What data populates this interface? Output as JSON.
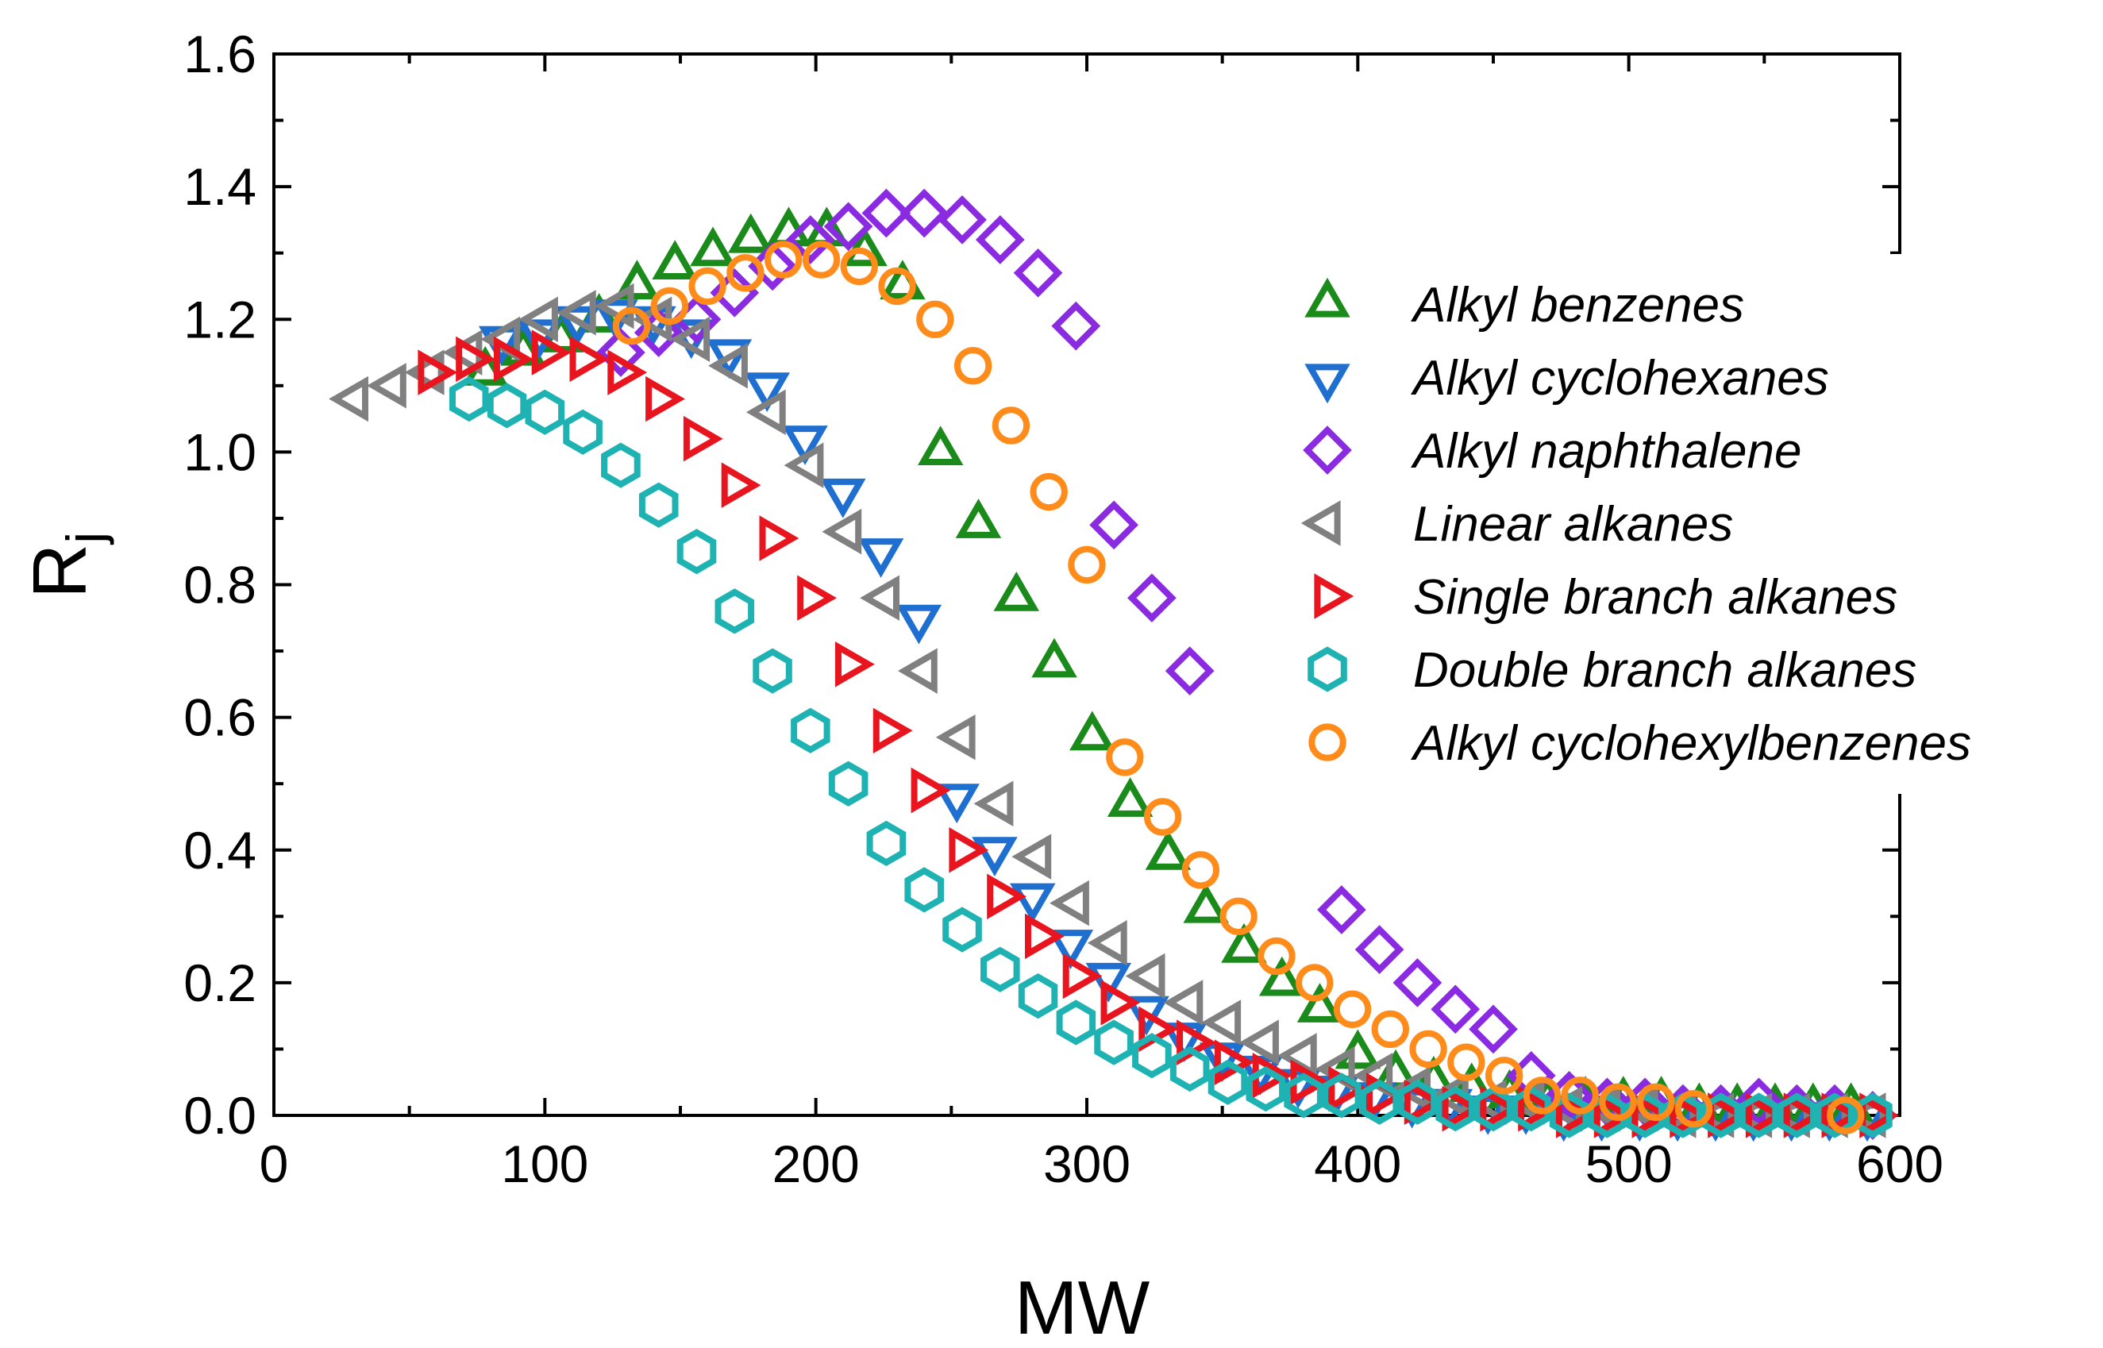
{
  "chart_data": {
    "type": "scatter",
    "title": "",
    "xlabel": "MW",
    "ylabel": "R",
    "ylabel_subscript": "j",
    "xlim": [
      0,
      600
    ],
    "ylim": [
      0,
      1.6
    ],
    "xticks": [
      "0",
      "100",
      "200",
      "300",
      "400",
      "500",
      "600"
    ],
    "yticks": [
      "0.0",
      "0.2",
      "0.4",
      "0.6",
      "0.8",
      "1.0",
      "1.2",
      "1.4",
      "1.6"
    ],
    "grid": false,
    "legend_position": "right",
    "series": [
      {
        "name": "Alkyl benzenes",
        "marker": "triangle-up",
        "color": "#1a8a1a",
        "points": [
          [
            78,
            1.12
          ],
          [
            92,
            1.15
          ],
          [
            106,
            1.17
          ],
          [
            120,
            1.2
          ],
          [
            134,
            1.25
          ],
          [
            148,
            1.28
          ],
          [
            162,
            1.3
          ],
          [
            176,
            1.32
          ],
          [
            190,
            1.33
          ],
          [
            204,
            1.33
          ],
          [
            218,
            1.3
          ],
          [
            232,
            1.25
          ],
          [
            246,
            1.0
          ],
          [
            260,
            0.89
          ],
          [
            274,
            0.78
          ],
          [
            288,
            0.68
          ],
          [
            302,
            0.57
          ],
          [
            316,
            0.47
          ],
          [
            330,
            0.39
          ],
          [
            344,
            0.31
          ],
          [
            358,
            0.25
          ],
          [
            372,
            0.2
          ],
          [
            386,
            0.16
          ],
          [
            400,
            0.09
          ],
          [
            414,
            0.06
          ],
          [
            428,
            0.05
          ],
          [
            442,
            0.04
          ],
          [
            456,
            0.03
          ],
          [
            470,
            0.02
          ],
          [
            484,
            0.02
          ],
          [
            498,
            0.02
          ],
          [
            512,
            0.02
          ],
          [
            526,
            0.01
          ],
          [
            540,
            0.01
          ],
          [
            554,
            0.01
          ],
          [
            568,
            0.01
          ],
          [
            582,
            0.01
          ]
        ]
      },
      {
        "name": "Alkyl cyclohexanes",
        "marker": "triangle-down",
        "color": "#1f6fd1",
        "points": [
          [
            84,
            1.17
          ],
          [
            98,
            1.18
          ],
          [
            112,
            1.2
          ],
          [
            126,
            1.21
          ],
          [
            140,
            1.2
          ],
          [
            154,
            1.18
          ],
          [
            168,
            1.15
          ],
          [
            182,
            1.1
          ],
          [
            196,
            1.02
          ],
          [
            210,
            0.94
          ],
          [
            224,
            0.85
          ],
          [
            238,
            0.75
          ],
          [
            252,
            0.48
          ],
          [
            266,
            0.4
          ],
          [
            280,
            0.33
          ],
          [
            294,
            0.26
          ],
          [
            308,
            0.21
          ],
          [
            322,
            0.16
          ],
          [
            336,
            0.12
          ],
          [
            350,
            0.09
          ],
          [
            364,
            0.07
          ],
          [
            378,
            0.05
          ],
          [
            392,
            0.04
          ],
          [
            406,
            0.03
          ],
          [
            420,
            0.02
          ],
          [
            434,
            0.02
          ],
          [
            448,
            0.01
          ],
          [
            462,
            0.01
          ],
          [
            476,
            0.0
          ],
          [
            490,
            0.0
          ],
          [
            504,
            0.0
          ],
          [
            518,
            0.0
          ],
          [
            532,
            0.0
          ],
          [
            546,
            0.0
          ],
          [
            560,
            0.0
          ],
          [
            574,
            0.0
          ],
          [
            588,
            0.0
          ]
        ]
      },
      {
        "name": "Alkyl naphthalene",
        "marker": "diamond",
        "color": "#8a2be2",
        "points": [
          [
            128,
            1.15
          ],
          [
            142,
            1.18
          ],
          [
            156,
            1.2
          ],
          [
            170,
            1.24
          ],
          [
            184,
            1.28
          ],
          [
            198,
            1.32
          ],
          [
            212,
            1.34
          ],
          [
            226,
            1.36
          ],
          [
            240,
            1.36
          ],
          [
            254,
            1.35
          ],
          [
            268,
            1.32
          ],
          [
            282,
            1.27
          ],
          [
            296,
            1.19
          ],
          [
            310,
            0.89
          ],
          [
            324,
            0.78
          ],
          [
            338,
            0.67
          ],
          [
            394,
            0.31
          ],
          [
            408,
            0.25
          ],
          [
            422,
            0.2
          ],
          [
            436,
            0.16
          ],
          [
            450,
            0.13
          ],
          [
            464,
            0.06
          ],
          [
            478,
            0.03
          ],
          [
            492,
            0.02
          ],
          [
            506,
            0.02
          ],
          [
            520,
            0.01
          ],
          [
            534,
            0.01
          ],
          [
            548,
            0.02
          ],
          [
            562,
            0.01
          ],
          [
            576,
            0.01
          ],
          [
            590,
            0.0
          ]
        ]
      },
      {
        "name": "Linear alkanes",
        "marker": "triangle-left",
        "color": "#808080",
        "points": [
          [
            30,
            1.08
          ],
          [
            44,
            1.1
          ],
          [
            58,
            1.12
          ],
          [
            72,
            1.15
          ],
          [
            86,
            1.17
          ],
          [
            100,
            1.2
          ],
          [
            114,
            1.21
          ],
          [
            128,
            1.22
          ],
          [
            142,
            1.2
          ],
          [
            156,
            1.17
          ],
          [
            170,
            1.13
          ],
          [
            184,
            1.06
          ],
          [
            198,
            0.98
          ],
          [
            212,
            0.88
          ],
          [
            226,
            0.78
          ],
          [
            240,
            0.67
          ],
          [
            254,
            0.57
          ],
          [
            268,
            0.47
          ],
          [
            282,
            0.39
          ],
          [
            296,
            0.32
          ],
          [
            310,
            0.26
          ],
          [
            324,
            0.21
          ],
          [
            338,
            0.17
          ],
          [
            352,
            0.14
          ],
          [
            366,
            0.11
          ],
          [
            380,
            0.09
          ],
          [
            394,
            0.07
          ],
          [
            408,
            0.06
          ],
          [
            422,
            0.04
          ],
          [
            436,
            0.03
          ],
          [
            450,
            0.02
          ],
          [
            464,
            0.02
          ],
          [
            478,
            0.01
          ],
          [
            492,
            0.01
          ],
          [
            506,
            0.01
          ],
          [
            520,
            0.0
          ],
          [
            534,
            0.0
          ],
          [
            548,
            0.0
          ],
          [
            562,
            0.0
          ],
          [
            576,
            0.0
          ],
          [
            590,
            0.0
          ]
        ]
      },
      {
        "name": "Single branch alkanes",
        "marker": "triangle-right",
        "color": "#e8141e",
        "points": [
          [
            58,
            1.12
          ],
          [
            72,
            1.14
          ],
          [
            86,
            1.14
          ],
          [
            100,
            1.15
          ],
          [
            114,
            1.14
          ],
          [
            128,
            1.12
          ],
          [
            142,
            1.08
          ],
          [
            156,
            1.02
          ],
          [
            170,
            0.95
          ],
          [
            184,
            0.87
          ],
          [
            198,
            0.78
          ],
          [
            212,
            0.68
          ],
          [
            226,
            0.58
          ],
          [
            240,
            0.49
          ],
          [
            254,
            0.4
          ],
          [
            268,
            0.33
          ],
          [
            282,
            0.27
          ],
          [
            296,
            0.21
          ],
          [
            310,
            0.17
          ],
          [
            324,
            0.13
          ],
          [
            338,
            0.11
          ],
          [
            352,
            0.08
          ],
          [
            366,
            0.06
          ],
          [
            380,
            0.05
          ],
          [
            394,
            0.04
          ],
          [
            408,
            0.03
          ],
          [
            422,
            0.02
          ],
          [
            436,
            0.01
          ],
          [
            450,
            0.01
          ],
          [
            464,
            0.01
          ],
          [
            478,
            0.0
          ],
          [
            492,
            0.0
          ],
          [
            506,
            0.0
          ],
          [
            520,
            0.0
          ],
          [
            534,
            0.0
          ],
          [
            548,
            0.0
          ],
          [
            562,
            0.0
          ],
          [
            576,
            0.0
          ],
          [
            590,
            0.0
          ]
        ]
      },
      {
        "name": "Double branch alkanes",
        "marker": "hexagon",
        "color": "#1fb2b2",
        "points": [
          [
            72,
            1.08
          ],
          [
            86,
            1.07
          ],
          [
            100,
            1.06
          ],
          [
            114,
            1.03
          ],
          [
            128,
            0.98
          ],
          [
            142,
            0.92
          ],
          [
            156,
            0.85
          ],
          [
            170,
            0.76
          ],
          [
            184,
            0.67
          ],
          [
            198,
            0.58
          ],
          [
            212,
            0.5
          ],
          [
            226,
            0.41
          ],
          [
            240,
            0.34
          ],
          [
            254,
            0.28
          ],
          [
            268,
            0.22
          ],
          [
            282,
            0.18
          ],
          [
            296,
            0.14
          ],
          [
            310,
            0.11
          ],
          [
            324,
            0.09
          ],
          [
            338,
            0.07
          ],
          [
            352,
            0.05
          ],
          [
            366,
            0.04
          ],
          [
            380,
            0.03
          ],
          [
            394,
            0.03
          ],
          [
            408,
            0.02
          ],
          [
            422,
            0.02
          ],
          [
            436,
            0.01
          ],
          [
            450,
            0.01
          ],
          [
            464,
            0.01
          ],
          [
            478,
            0.0
          ],
          [
            492,
            0.0
          ],
          [
            506,
            0.0
          ],
          [
            520,
            0.0
          ],
          [
            534,
            0.0
          ],
          [
            548,
            0.0
          ],
          [
            562,
            0.0
          ],
          [
            576,
            0.0
          ],
          [
            590,
            0.0
          ]
        ]
      },
      {
        "name": "Alkyl cyclohexylbenzenes",
        "marker": "circle",
        "color": "#ff8c1a",
        "points": [
          [
            132,
            1.19
          ],
          [
            146,
            1.22
          ],
          [
            160,
            1.25
          ],
          [
            174,
            1.27
          ],
          [
            188,
            1.29
          ],
          [
            202,
            1.29
          ],
          [
            216,
            1.28
          ],
          [
            230,
            1.25
          ],
          [
            244,
            1.2
          ],
          [
            258,
            1.13
          ],
          [
            272,
            1.04
          ],
          [
            286,
            0.94
          ],
          [
            300,
            0.83
          ],
          [
            314,
            0.54
          ],
          [
            328,
            0.45
          ],
          [
            342,
            0.37
          ],
          [
            356,
            0.3
          ],
          [
            370,
            0.24
          ],
          [
            384,
            0.2
          ],
          [
            398,
            0.16
          ],
          [
            412,
            0.13
          ],
          [
            426,
            0.1
          ],
          [
            440,
            0.08
          ],
          [
            454,
            0.06
          ],
          [
            468,
            0.03
          ],
          [
            482,
            0.03
          ],
          [
            496,
            0.02
          ],
          [
            510,
            0.02
          ],
          [
            524,
            0.01
          ],
          [
            580,
            0.0
          ]
        ]
      }
    ]
  }
}
